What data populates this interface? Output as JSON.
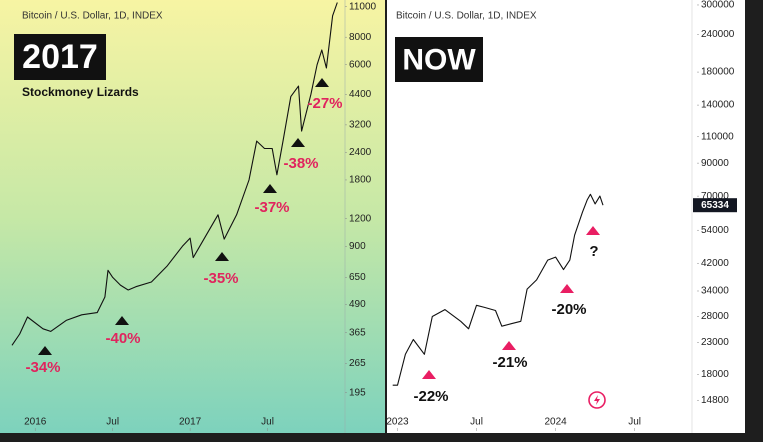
{
  "chart_data": [
    {
      "type": "line",
      "title": "2017",
      "subtitle": "Bitcoin / U.S. Dollar, 1D, INDEX",
      "source": "Stockmoney Lizards",
      "log_scale": true,
      "grid": false,
      "x": [
        2015.85,
        2015.9,
        2015.95,
        2016.05,
        2016.1,
        2016.2,
        2016.3,
        2016.4,
        2016.45,
        2016.47,
        2016.5,
        2016.55,
        2016.6,
        2016.65,
        2016.75,
        2016.85,
        2016.95,
        2017.0,
        2017.02,
        2017.1,
        2017.18,
        2017.22,
        2017.3,
        2017.38,
        2017.43,
        2017.48,
        2017.53,
        2017.56,
        2017.6,
        2017.65,
        2017.7,
        2017.72,
        2017.78,
        2017.82,
        2017.85,
        2017.88,
        2017.92,
        2017.95
      ],
      "series": [
        {
          "name": "Bitcoin",
          "color": "#111111",
          "values": [
            320,
            360,
            430,
            380,
            370,
            415,
            440,
            450,
            530,
            700,
            650,
            600,
            570,
            590,
            620,
            730,
            900,
            980,
            800,
            1000,
            1250,
            970,
            1250,
            1800,
            2700,
            2500,
            2500,
            1900,
            2700,
            4300,
            4800,
            3000,
            4400,
            6000,
            7000,
            5800,
            10000,
            11500
          ]
        }
      ],
      "xlim": [
        2015.85,
        2018.0
      ],
      "xticks": [
        2016,
        {
          "value": 2016.5,
          "label": "Jul"
        },
        2017,
        {
          "value": 2017.5,
          "label": "Jul"
        }
      ],
      "ylim": [
        132,
        11800
      ],
      "yticks": [
        195,
        265,
        365,
        490,
        650,
        900,
        1200,
        1800,
        2400,
        3200,
        4400,
        6000,
        8000,
        11000
      ],
      "marker_color": "#111111",
      "annotations": [
        {
          "text": "-34%",
          "color": "#e0245e"
        },
        {
          "text": "-40%",
          "color": "#e0245e"
        },
        {
          "text": "-35%",
          "color": "#e0245e"
        },
        {
          "text": "-37%",
          "color": "#e0245e"
        },
        {
          "text": "-38%",
          "color": "#e0245e"
        },
        {
          "text": "-27%",
          "color": "#e0245e"
        }
      ]
    },
    {
      "type": "line",
      "title": "NOW",
      "subtitle": "Bitcoin / U.S. Dollar, 1D, INDEX",
      "log_scale": true,
      "grid": false,
      "x": [
        2022.97,
        2023.0,
        2023.05,
        2023.1,
        2023.17,
        2023.22,
        2023.3,
        2023.4,
        2023.45,
        2023.5,
        2023.55,
        2023.62,
        2023.66,
        2023.72,
        2023.78,
        2023.82,
        2023.88,
        2023.95,
        2024.0,
        2024.05,
        2024.09,
        2024.12,
        2024.17,
        2024.2,
        2024.22,
        2024.25,
        2024.28,
        2024.3
      ],
      "series": [
        {
          "name": "Bitcoin",
          "color": "#111111",
          "values": [
            16600,
            16600,
            21000,
            23500,
            21000,
            28000,
            29500,
            27000,
            25500,
            30500,
            30000,
            29300,
            26000,
            26500,
            27000,
            34500,
            37000,
            43000,
            44000,
            40000,
            43000,
            52000,
            62000,
            68000,
            71000,
            66000,
            70000,
            65334
          ]
        }
      ],
      "xlim": [
        2022.94,
        2024.85
      ],
      "xticks": [
        2023,
        {
          "value": 2023.5,
          "label": "Jul"
        },
        2024,
        {
          "value": 2024.5,
          "label": "Jul"
        }
      ],
      "ylim": [
        11800,
        311600
      ],
      "yticks": [
        14800,
        18000,
        23000,
        28000,
        34000,
        42000,
        54000,
        70000,
        90000,
        110000,
        140000,
        180000,
        240000,
        300000
      ],
      "marker_color": "#e91e63",
      "annotations": [
        {
          "text": "-22%",
          "color": "#111111"
        },
        {
          "text": "-21%",
          "color": "#111111"
        },
        {
          "text": "-20%",
          "color": "#111111"
        },
        {
          "text": "?",
          "color": "#111111"
        }
      ]
    }
  ]
}
